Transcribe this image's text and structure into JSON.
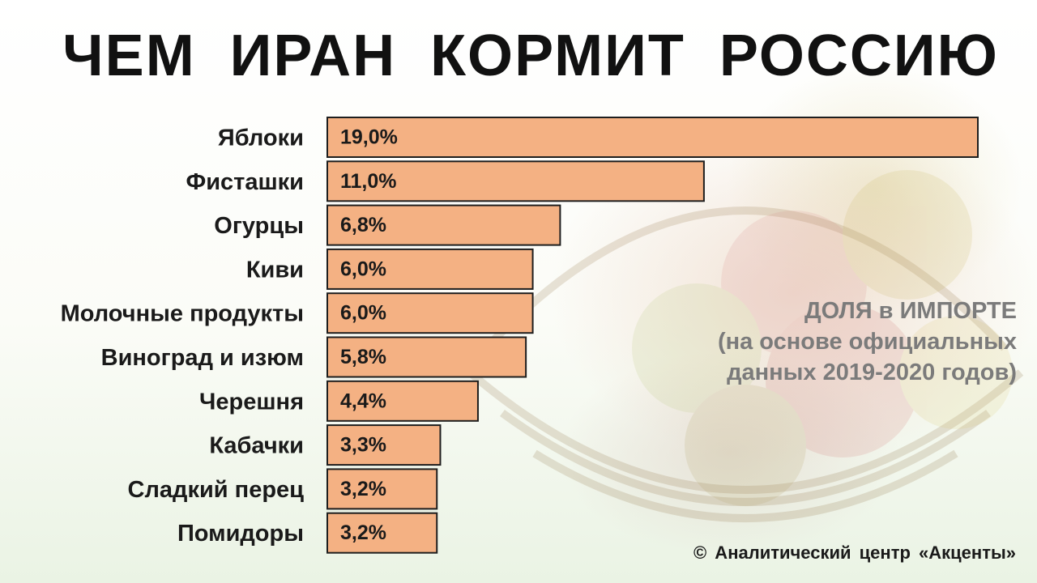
{
  "title": "ЧЕМ ИРАН КОРМИТ РОССИЮ",
  "note": {
    "line1": "ДОЛЯ в ИМПОРТЕ",
    "line2": "(на основе официальных",
    "line3": "данных 2019-2020 годов)"
  },
  "credit": "© Аналитический центр «Акценты»",
  "colors": {
    "bar": "#f4b183",
    "bar_border": "#1e1e1e",
    "note": "#7b7b7b"
  },
  "chart_data": {
    "type": "bar",
    "orientation": "horizontal",
    "title": "ЧЕМ ИРАН КОРМИТ РОССИЮ",
    "categories": [
      "Яблоки",
      "Фисташки",
      "Огурцы",
      "Киви",
      "Молочные продукты",
      "Виноград и изюм",
      "Черешня",
      "Кабачки",
      "Сладкий перец",
      "Помидоры"
    ],
    "values": [
      19.0,
      11.0,
      6.8,
      6.0,
      6.0,
      5.8,
      4.4,
      3.3,
      3.2,
      3.2
    ],
    "value_labels": [
      "19,0%",
      "11,0%",
      "6,8%",
      "6,0%",
      "6,0%",
      "5,8%",
      "4,4%",
      "3,3%",
      "3,2%",
      "3,2%"
    ],
    "unit": "%",
    "grid": false,
    "legend": "none"
  }
}
